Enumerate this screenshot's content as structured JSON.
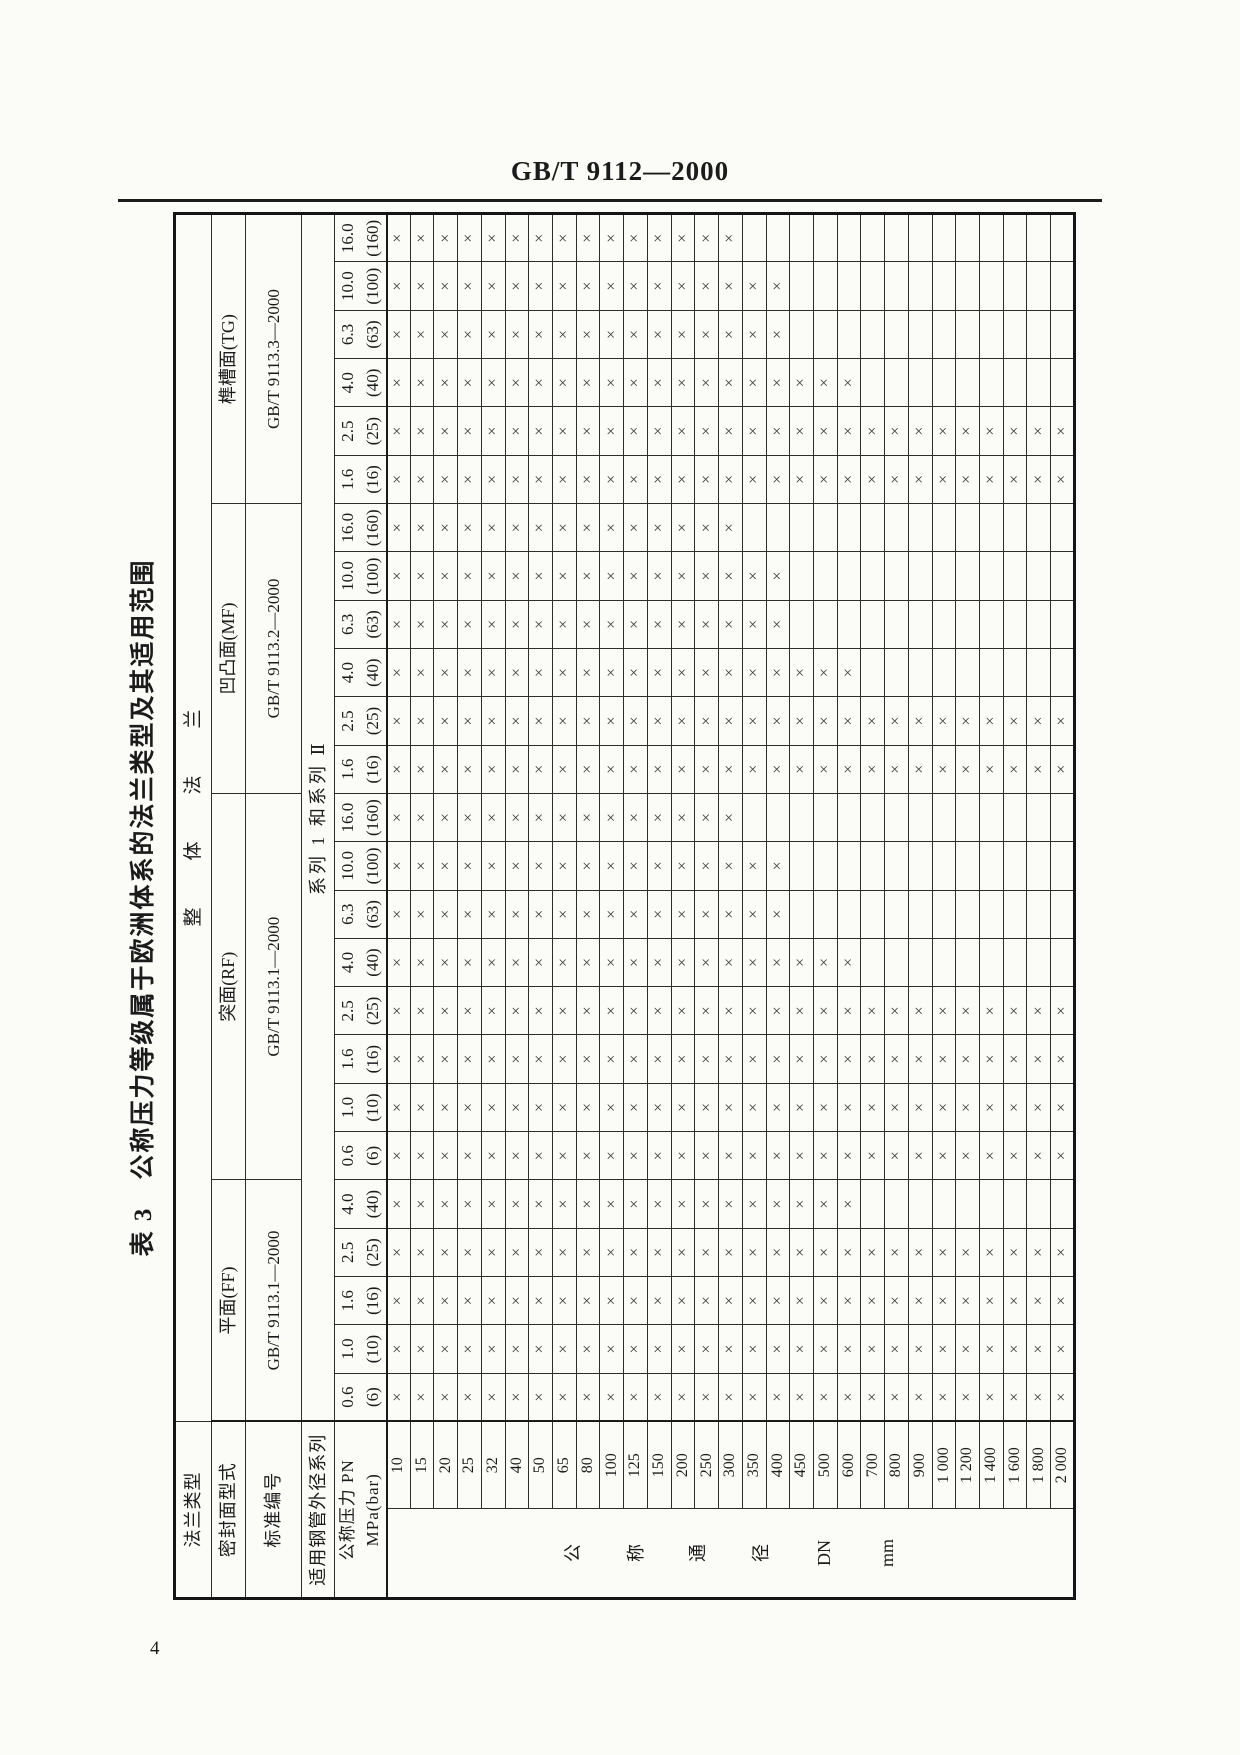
{
  "page": {
    "header_code": "GB/T 9112—2000",
    "page_number": "4"
  },
  "table": {
    "title": "表 3　公称压力等级属于欧洲体系的法兰类型及其适用范围",
    "labels": {
      "flange_type": "法兰类型",
      "seal_face": "密封面型式",
      "standard": "标准编号",
      "pipe_series": "适用钢管外径系列",
      "pn_line1": "公称压力 PN",
      "pn_line2": "MPa(bar)"
    },
    "flange_type_value": "整体法兰",
    "pipe_series_value": "系列 1 和系列 Ⅱ",
    "dn_column_label": [
      "公",
      "称",
      "通",
      "径",
      "DN",
      "mm"
    ],
    "availability_mark": "×",
    "groups": [
      {
        "seal_face": "平面(FF)",
        "standard": "GB/T 9113.1—2000",
        "pn_classes": [
          {
            "mpa": "0.6",
            "bar": "(6)",
            "max_dn": 2000
          },
          {
            "mpa": "1.0",
            "bar": "(10)",
            "max_dn": 2000
          },
          {
            "mpa": "1.6",
            "bar": "(16)",
            "max_dn": 2000
          },
          {
            "mpa": "2.5",
            "bar": "(25)",
            "max_dn": 2000
          },
          {
            "mpa": "4.0",
            "bar": "(40)",
            "max_dn": 600
          }
        ]
      },
      {
        "seal_face": "突面(RF)",
        "standard": "GB/T 9113.1—2000",
        "pn_classes": [
          {
            "mpa": "0.6",
            "bar": "(6)",
            "max_dn": 2000
          },
          {
            "mpa": "1.0",
            "bar": "(10)",
            "max_dn": 2000
          },
          {
            "mpa": "1.6",
            "bar": "(16)",
            "max_dn": 2000
          },
          {
            "mpa": "2.5",
            "bar": "(25)",
            "max_dn": 2000
          },
          {
            "mpa": "4.0",
            "bar": "(40)",
            "max_dn": 600
          },
          {
            "mpa": "6.3",
            "bar": "(63)",
            "max_dn": 400
          },
          {
            "mpa": "10.0",
            "bar": "(100)",
            "max_dn": 400
          },
          {
            "mpa": "16.0",
            "bar": "(160)",
            "max_dn": 300
          }
        ]
      },
      {
        "seal_face": "凹凸面(MF)",
        "standard": "GB/T 9113.2—2000",
        "pn_classes": [
          {
            "mpa": "1.6",
            "bar": "(16)",
            "max_dn": 2000
          },
          {
            "mpa": "2.5",
            "bar": "(25)",
            "max_dn": 2000
          },
          {
            "mpa": "4.0",
            "bar": "(40)",
            "max_dn": 600
          },
          {
            "mpa": "6.3",
            "bar": "(63)",
            "max_dn": 400
          },
          {
            "mpa": "10.0",
            "bar": "(100)",
            "max_dn": 400
          },
          {
            "mpa": "16.0",
            "bar": "(160)",
            "max_dn": 300
          }
        ]
      },
      {
        "seal_face": "榫槽面(TG)",
        "standard": "GB/T 9113.3—2000",
        "pn_classes": [
          {
            "mpa": "1.6",
            "bar": "(16)",
            "max_dn": 2000
          },
          {
            "mpa": "2.5",
            "bar": "(25)",
            "max_dn": 2000
          },
          {
            "mpa": "4.0",
            "bar": "(40)",
            "max_dn": 600
          },
          {
            "mpa": "6.3",
            "bar": "(63)",
            "max_dn": 400
          },
          {
            "mpa": "10.0",
            "bar": "(100)",
            "max_dn": 400
          },
          {
            "mpa": "16.0",
            "bar": "(160)",
            "max_dn": 300
          }
        ]
      }
    ],
    "dn_rows": [
      {
        "dn": 10,
        "label": "10"
      },
      {
        "dn": 15,
        "label": "15"
      },
      {
        "dn": 20,
        "label": "20"
      },
      {
        "dn": 25,
        "label": "25"
      },
      {
        "dn": 32,
        "label": "32"
      },
      {
        "dn": 40,
        "label": "40"
      },
      {
        "dn": 50,
        "label": "50"
      },
      {
        "dn": 65,
        "label": "65"
      },
      {
        "dn": 80,
        "label": "80"
      },
      {
        "dn": 100,
        "label": "100"
      },
      {
        "dn": 125,
        "label": "125"
      },
      {
        "dn": 150,
        "label": "150"
      },
      {
        "dn": 200,
        "label": "200"
      },
      {
        "dn": 250,
        "label": "250"
      },
      {
        "dn": 300,
        "label": "300"
      },
      {
        "dn": 350,
        "label": "350"
      },
      {
        "dn": 400,
        "label": "400"
      },
      {
        "dn": 450,
        "label": "450"
      },
      {
        "dn": 500,
        "label": "500"
      },
      {
        "dn": 600,
        "label": "600"
      },
      {
        "dn": 700,
        "label": "700"
      },
      {
        "dn": 800,
        "label": "800"
      },
      {
        "dn": 900,
        "label": "900"
      },
      {
        "dn": 1000,
        "label": "1 000"
      },
      {
        "dn": 1200,
        "label": "1 200"
      },
      {
        "dn": 1400,
        "label": "1 400"
      },
      {
        "dn": 1600,
        "label": "1 600"
      },
      {
        "dn": 1800,
        "label": "1 800"
      },
      {
        "dn": 2000,
        "label": "2 000"
      }
    ]
  }
}
